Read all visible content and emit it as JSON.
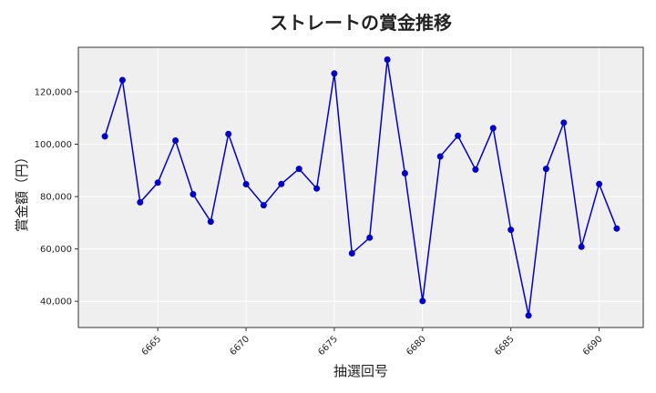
{
  "chart_data": {
    "type": "line",
    "title": "ストレートの賞金推移",
    "xlabel": "抽選回号",
    "ylabel": "賞金額（円）",
    "xlim": [
      6660.5,
      6692.5
    ],
    "ylim": [
      30000,
      137000
    ],
    "xticks": [
      6665,
      6670,
      6675,
      6680,
      6685,
      6690
    ],
    "yticks": [
      40000,
      60000,
      80000,
      100000,
      120000
    ],
    "ytick_labels": [
      "40,000",
      "60,000",
      "80,000",
      "100,000",
      "120,000"
    ],
    "grid": true,
    "series": [
      {
        "color": "#0000cc",
        "x": [
          6662,
          6663,
          6664,
          6665,
          6666,
          6667,
          6668,
          6669,
          6670,
          6671,
          6672,
          6673,
          6674,
          6675,
          6676,
          6677,
          6678,
          6679,
          6680,
          6681,
          6682,
          6683,
          6684,
          6685,
          6686,
          6687,
          6688,
          6689,
          6690,
          6691
        ],
        "values": [
          103000,
          124500,
          77800,
          85300,
          101400,
          80900,
          70400,
          103900,
          84700,
          76700,
          84800,
          90600,
          83100,
          127000,
          58300,
          64300,
          132300,
          88900,
          40100,
          95300,
          103200,
          90300,
          106100,
          67300,
          34600,
          90600,
          108200,
          60800,
          84800,
          67800
        ]
      }
    ]
  },
  "colors": {
    "plot_bg": "#efefef",
    "grid": "#ffffff",
    "line": "#0000cc"
  }
}
